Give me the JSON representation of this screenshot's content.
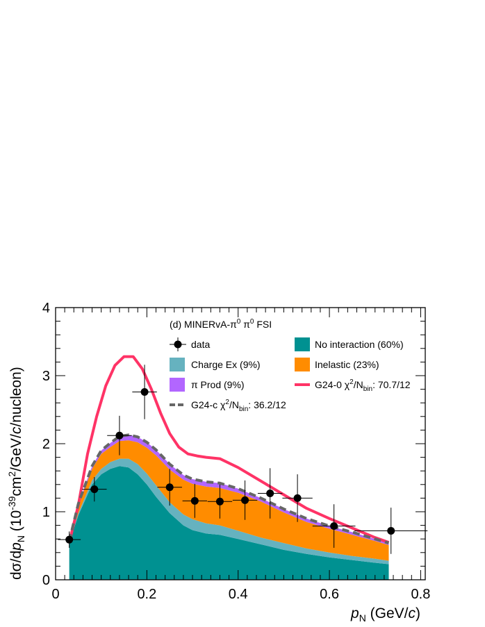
{
  "chart_data": {
    "type": "stacked-area-with-lines-and-points",
    "title": "(d) MINERvA-π⁰  π⁰ FSI",
    "title_parts": {
      "main": "(d) MINERvA-π",
      "sup": "0",
      "tail": "  π",
      "tail_sup": "0",
      "end": " FSI"
    },
    "xlabel": {
      "var": "p",
      "sub": "N",
      "units_pre": " (GeV/",
      "units_it": "c",
      "units_post": ")"
    },
    "ylabel": {
      "pre": "dσ/d",
      "var": "p",
      "sub": "N",
      "unit_pre": "  (10",
      "unit_exp": "-39",
      "unit_mid": "cm",
      "unit_exp2": "2",
      "unit_post1": "/GeV/",
      "unit_it": "c",
      "unit_post2": "/nucleon)"
    },
    "xlim": [
      0,
      0.81
    ],
    "ylim": [
      0,
      4
    ],
    "xticks": [
      0,
      0.2,
      0.4,
      0.6,
      0.8
    ],
    "xtick_labels": [
      "0",
      "0.2",
      "0.4",
      "0.6",
      "0.8"
    ],
    "yticks": [
      0,
      1,
      2,
      3,
      4
    ],
    "ytick_labels": [
      "0",
      "1",
      "2",
      "3",
      "4"
    ],
    "stack_x": [
      0.03,
      0.05,
      0.08,
      0.1,
      0.12,
      0.14,
      0.16,
      0.18,
      0.2,
      0.22,
      0.25,
      0.28,
      0.3,
      0.33,
      0.36,
      0.4,
      0.45,
      0.5,
      0.55,
      0.6,
      0.65,
      0.7,
      0.73
    ],
    "stack_series": [
      {
        "name": "No interaction (60%)",
        "color": "#009191",
        "values": [
          0.55,
          0.95,
          1.4,
          1.55,
          1.63,
          1.67,
          1.65,
          1.55,
          1.4,
          1.22,
          0.98,
          0.8,
          0.73,
          0.68,
          0.66,
          0.6,
          0.52,
          0.44,
          0.38,
          0.33,
          0.29,
          0.25,
          0.23
        ]
      },
      {
        "name": "Charge Ex (9%)",
        "color": "#66b2bf",
        "values": [
          0.0,
          0.03,
          0.06,
          0.08,
          0.1,
          0.11,
          0.13,
          0.15,
          0.16,
          0.17,
          0.16,
          0.16,
          0.16,
          0.15,
          0.14,
          0.12,
          0.1,
          0.1,
          0.08,
          0.07,
          0.06,
          0.06,
          0.05
        ]
      },
      {
        "name": "Inelastic (23%)",
        "color": "#ff8c00",
        "values": [
          0.02,
          0.12,
          0.17,
          0.22,
          0.22,
          0.26,
          0.27,
          0.32,
          0.38,
          0.44,
          0.48,
          0.51,
          0.52,
          0.54,
          0.55,
          0.56,
          0.53,
          0.45,
          0.39,
          0.35,
          0.31,
          0.26,
          0.23
        ]
      },
      {
        "name": "π Prod (9%)",
        "color": "#b266ff",
        "values": [
          0.0,
          0.02,
          0.04,
          0.05,
          0.06,
          0.07,
          0.08,
          0.08,
          0.08,
          0.08,
          0.08,
          0.07,
          0.07,
          0.07,
          0.07,
          0.06,
          0.05,
          0.05,
          0.05,
          0.04,
          0.04,
          0.03,
          0.03
        ]
      }
    ],
    "lines": [
      {
        "name": "G24-0",
        "legend": "G24-0 χ²/N",
        "legend_parts": {
          "pre": "G24-0 χ",
          "sup": "2",
          "mid": "/N",
          "sub": "bin",
          "post": ": 70.7/12"
        },
        "color": "#ff3366",
        "dash": "none",
        "x": [
          0.03,
          0.05,
          0.07,
          0.09,
          0.11,
          0.13,
          0.15,
          0.17,
          0.19,
          0.21,
          0.23,
          0.25,
          0.27,
          0.29,
          0.31,
          0.33,
          0.36,
          0.4,
          0.45,
          0.5,
          0.55,
          0.6,
          0.65,
          0.7,
          0.73
        ],
        "y": [
          0.55,
          1.1,
          1.85,
          2.4,
          2.85,
          3.15,
          3.28,
          3.28,
          3.1,
          2.8,
          2.45,
          2.15,
          1.95,
          1.85,
          1.82,
          1.8,
          1.78,
          1.65,
          1.45,
          1.25,
          1.05,
          0.9,
          0.76,
          0.62,
          0.55
        ]
      },
      {
        "name": "G24-c",
        "legend_parts": {
          "pre": "G24-c χ",
          "sup": "2",
          "mid": "/N",
          "sub": "bin",
          "post": ": 36.2/12"
        },
        "color": "#666666",
        "dash": "10,6",
        "x": [
          0.03,
          0.05,
          0.08,
          0.1,
          0.12,
          0.14,
          0.16,
          0.18,
          0.2,
          0.22,
          0.25,
          0.28,
          0.3,
          0.33,
          0.36,
          0.4,
          0.45,
          0.5,
          0.55,
          0.6,
          0.65,
          0.7,
          0.73
        ],
        "y": [
          0.57,
          1.12,
          1.67,
          1.9,
          2.01,
          2.11,
          2.13,
          2.1,
          2.02,
          1.91,
          1.7,
          1.54,
          1.48,
          1.44,
          1.42,
          1.34,
          1.2,
          1.04,
          0.9,
          0.79,
          0.7,
          0.6,
          0.54
        ]
      }
    ],
    "data_points": {
      "name": "data",
      "x": [
        0.03,
        0.085,
        0.14,
        0.195,
        0.25,
        0.305,
        0.36,
        0.415,
        0.47,
        0.53,
        0.61,
        0.735
      ],
      "y": [
        0.59,
        1.33,
        2.12,
        2.76,
        1.36,
        1.16,
        1.15,
        1.17,
        1.27,
        1.2,
        0.79,
        0.72
      ],
      "xerr": [
        0.025,
        0.027,
        0.027,
        0.027,
        0.027,
        0.027,
        0.027,
        0.027,
        0.027,
        0.033,
        0.047,
        0.08
      ],
      "yerr": [
        0.12,
        0.18,
        0.29,
        0.4,
        0.27,
        0.25,
        0.25,
        0.29,
        0.37,
        0.35,
        0.32,
        0.34
      ]
    },
    "legend": [
      {
        "kind": "marker",
        "label": "data"
      },
      {
        "kind": "box",
        "label": "No interaction (60%)",
        "color": "#009191"
      },
      {
        "kind": "box",
        "label": "Charge Ex (9%)",
        "color": "#66b2bf"
      },
      {
        "kind": "box",
        "label": "Inelastic (23%)",
        "color": "#ff8c00"
      },
      {
        "kind": "box",
        "label": "π Prod (9%)",
        "color": "#b266ff"
      },
      {
        "kind": "line",
        "series": "G24-0"
      },
      {
        "kind": "line",
        "series": "G24-c"
      }
    ]
  }
}
